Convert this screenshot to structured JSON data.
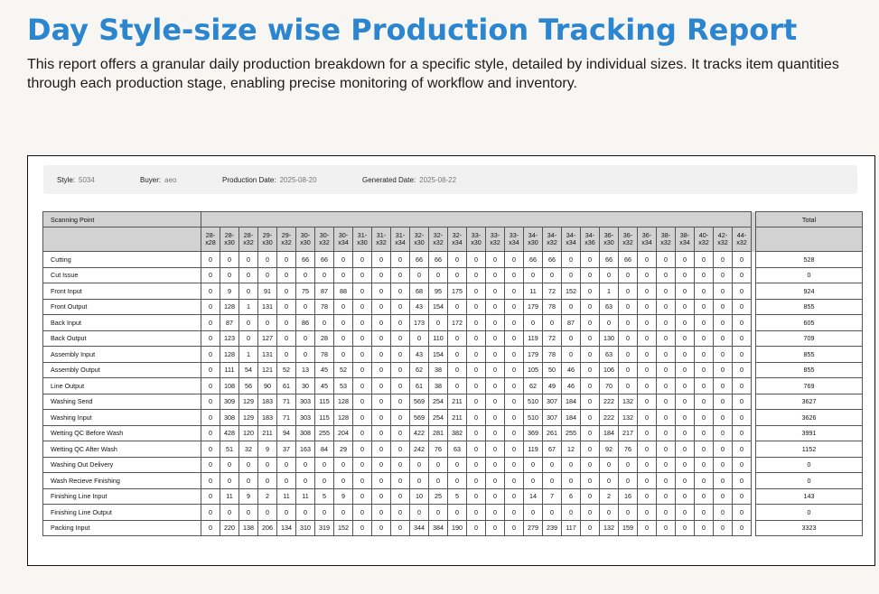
{
  "header": {
    "title": "Day Style-size wise Production Tracking Report",
    "description": "This report offers a granular daily production breakdown for a specific style, detailed by individual sizes. It tracks item quantities through each production stage, enabling precise monitoring of workflow and inventory."
  },
  "meta": {
    "style_label": "Style:",
    "style_value": "5034",
    "buyer_label": "Buyer:",
    "buyer_value": "aeo",
    "production_date_label": "Production Date:",
    "production_date_value": "2025-08-20",
    "generated_date_label": "Generated Date:",
    "generated_date_value": "2025-08-22"
  },
  "table": {
    "scanning_point_header": "Scanning Point",
    "total_header": "Total",
    "sizes": [
      "28-x28",
      "28-x30",
      "28-x32",
      "29-x30",
      "29-x32",
      "30-x30",
      "30-x32",
      "30-x34",
      "31-x30",
      "31-x32",
      "31-x34",
      "32-x30",
      "32-x32",
      "32-x34",
      "33-x30",
      "33-x32",
      "33-x34",
      "34-x30",
      "34-x32",
      "34-x34",
      "34-x36",
      "36-x30",
      "36-x32",
      "36-x34",
      "38-x32",
      "38-x34",
      "40-x32",
      "42-x32",
      "44-x32"
    ],
    "rows": [
      {
        "label": "Cutting",
        "values": [
          "0",
          "0",
          "0",
          "0",
          "0",
          "66",
          "66",
          "0",
          "0",
          "0",
          "0",
          "66",
          "66",
          "0",
          "0",
          "0",
          "0",
          "66",
          "66",
          "0",
          "0",
          "66",
          "66",
          "0",
          "0",
          "0",
          "0",
          "0",
          "0"
        ],
        "total": "528"
      },
      {
        "label": "Cut Issue",
        "values": [
          "0",
          "0",
          "0",
          "0",
          "0",
          "0",
          "0",
          "0",
          "0",
          "0",
          "0",
          "0",
          "0",
          "0",
          "0",
          "0",
          "0",
          "0",
          "0",
          "0",
          "0",
          "0",
          "0",
          "0",
          "0",
          "0",
          "0",
          "0",
          "0"
        ],
        "total": "0"
      },
      {
        "label": "Front Input",
        "values": [
          "0",
          "9",
          "0",
          "91",
          "0",
          "75",
          "87",
          "88",
          "0",
          "0",
          "0",
          "68",
          "95",
          "175",
          "0",
          "0",
          "0",
          "11",
          "72",
          "152",
          "0",
          "1",
          "0",
          "0",
          "0",
          "0",
          "0",
          "0",
          "0"
        ],
        "total": "924"
      },
      {
        "label": "Front Output",
        "values": [
          "0",
          "128",
          "1",
          "131",
          "0",
          "0",
          "78",
          "0",
          "0",
          "0",
          "0",
          "43",
          "154",
          "0",
          "0",
          "0",
          "0",
          "179",
          "78",
          "0",
          "0",
          "63",
          "0",
          "0",
          "0",
          "0",
          "0",
          "0",
          "0"
        ],
        "total": "855"
      },
      {
        "label": "Back Input",
        "values": [
          "0",
          "87",
          "0",
          "0",
          "0",
          "86",
          "0",
          "0",
          "0",
          "0",
          "0",
          "173",
          "0",
          "172",
          "0",
          "0",
          "0",
          "0",
          "0",
          "87",
          "0",
          "0",
          "0",
          "0",
          "0",
          "0",
          "0",
          "0",
          "0"
        ],
        "total": "605"
      },
      {
        "label": "Back Output",
        "values": [
          "0",
          "123",
          "0",
          "127",
          "0",
          "0",
          "28",
          "0",
          "0",
          "0",
          "0",
          "0",
          "110",
          "0",
          "0",
          "0",
          "0",
          "119",
          "72",
          "0",
          "0",
          "130",
          "0",
          "0",
          "0",
          "0",
          "0",
          "0",
          "0"
        ],
        "total": "709"
      },
      {
        "label": "Assembly Input",
        "values": [
          "0",
          "128",
          "1",
          "131",
          "0",
          "0",
          "78",
          "0",
          "0",
          "0",
          "0",
          "43",
          "154",
          "0",
          "0",
          "0",
          "0",
          "179",
          "78",
          "0",
          "0",
          "63",
          "0",
          "0",
          "0",
          "0",
          "0",
          "0",
          "0"
        ],
        "total": "855"
      },
      {
        "label": "Assembly Output",
        "values": [
          "0",
          "111",
          "54",
          "121",
          "52",
          "13",
          "45",
          "52",
          "0",
          "0",
          "0",
          "62",
          "38",
          "0",
          "0",
          "0",
          "0",
          "105",
          "50",
          "46",
          "0",
          "106",
          "0",
          "0",
          "0",
          "0",
          "0",
          "0",
          "0"
        ],
        "total": "855"
      },
      {
        "label": "Line Output",
        "values": [
          "0",
          "108",
          "56",
          "90",
          "61",
          "30",
          "45",
          "53",
          "0",
          "0",
          "0",
          "61",
          "38",
          "0",
          "0",
          "0",
          "0",
          "62",
          "49",
          "46",
          "0",
          "70",
          "0",
          "0",
          "0",
          "0",
          "0",
          "0",
          "0"
        ],
        "total": "769"
      },
      {
        "label": "Washing Send",
        "values": [
          "0",
          "309",
          "129",
          "183",
          "71",
          "303",
          "115",
          "128",
          "0",
          "0",
          "0",
          "569",
          "254",
          "211",
          "0",
          "0",
          "0",
          "510",
          "307",
          "184",
          "0",
          "222",
          "132",
          "0",
          "0",
          "0",
          "0",
          "0",
          "0"
        ],
        "total": "3627"
      },
      {
        "label": "Washing Input",
        "values": [
          "0",
          "308",
          "129",
          "183",
          "71",
          "303",
          "115",
          "128",
          "0",
          "0",
          "0",
          "569",
          "254",
          "211",
          "0",
          "0",
          "0",
          "510",
          "307",
          "184",
          "0",
          "222",
          "132",
          "0",
          "0",
          "0",
          "0",
          "0",
          "0"
        ],
        "total": "3626"
      },
      {
        "label": "Wetting QC Before Wash",
        "values": [
          "0",
          "428",
          "120",
          "211",
          "94",
          "308",
          "255",
          "204",
          "0",
          "0",
          "0",
          "422",
          "281",
          "382",
          "0",
          "0",
          "0",
          "369",
          "261",
          "255",
          "0",
          "184",
          "217",
          "0",
          "0",
          "0",
          "0",
          "0",
          "0"
        ],
        "total": "3991"
      },
      {
        "label": "Wetting QC After Wash",
        "values": [
          "0",
          "51",
          "32",
          "9",
          "37",
          "163",
          "84",
          "29",
          "0",
          "0",
          "0",
          "242",
          "76",
          "63",
          "0",
          "0",
          "0",
          "119",
          "67",
          "12",
          "0",
          "92",
          "76",
          "0",
          "0",
          "0",
          "0",
          "0",
          "0"
        ],
        "total": "1152"
      },
      {
        "label": "Washing Out Delivery",
        "values": [
          "0",
          "0",
          "0",
          "0",
          "0",
          "0",
          "0",
          "0",
          "0",
          "0",
          "0",
          "0",
          "0",
          "0",
          "0",
          "0",
          "0",
          "0",
          "0",
          "0",
          "0",
          "0",
          "0",
          "0",
          "0",
          "0",
          "0",
          "0",
          "0"
        ],
        "total": "0"
      },
      {
        "label": "Wash Recieve Finishing",
        "values": [
          "0",
          "0",
          "0",
          "0",
          "0",
          "0",
          "0",
          "0",
          "0",
          "0",
          "0",
          "0",
          "0",
          "0",
          "0",
          "0",
          "0",
          "0",
          "0",
          "0",
          "0",
          "0",
          "0",
          "0",
          "0",
          "0",
          "0",
          "0",
          "0"
        ],
        "total": "0"
      },
      {
        "label": "Finishing Line Input",
        "values": [
          "0",
          "11",
          "9",
          "2",
          "11",
          "11",
          "5",
          "9",
          "0",
          "0",
          "0",
          "10",
          "25",
          "5",
          "0",
          "0",
          "0",
          "14",
          "7",
          "6",
          "0",
          "2",
          "16",
          "0",
          "0",
          "0",
          "0",
          "0",
          "0"
        ],
        "total": "143"
      },
      {
        "label": "Finishing Line Output",
        "values": [
          "0",
          "0",
          "0",
          "0",
          "0",
          "0",
          "0",
          "0",
          "0",
          "0",
          "0",
          "0",
          "0",
          "0",
          "0",
          "0",
          "0",
          "0",
          "0",
          "0",
          "0",
          "0",
          "0",
          "0",
          "0",
          "0",
          "0",
          "0",
          "0"
        ],
        "total": "0"
      },
      {
        "label": "Packing Input",
        "values": [
          "0",
          "220",
          "138",
          "206",
          "134",
          "310",
          "319",
          "152",
          "0",
          "0",
          "0",
          "344",
          "384",
          "190",
          "0",
          "0",
          "0",
          "279",
          "239",
          "117",
          "0",
          "132",
          "159",
          "0",
          "0",
          "0",
          "0",
          "0",
          "0"
        ],
        "total": "3323"
      }
    ]
  }
}
